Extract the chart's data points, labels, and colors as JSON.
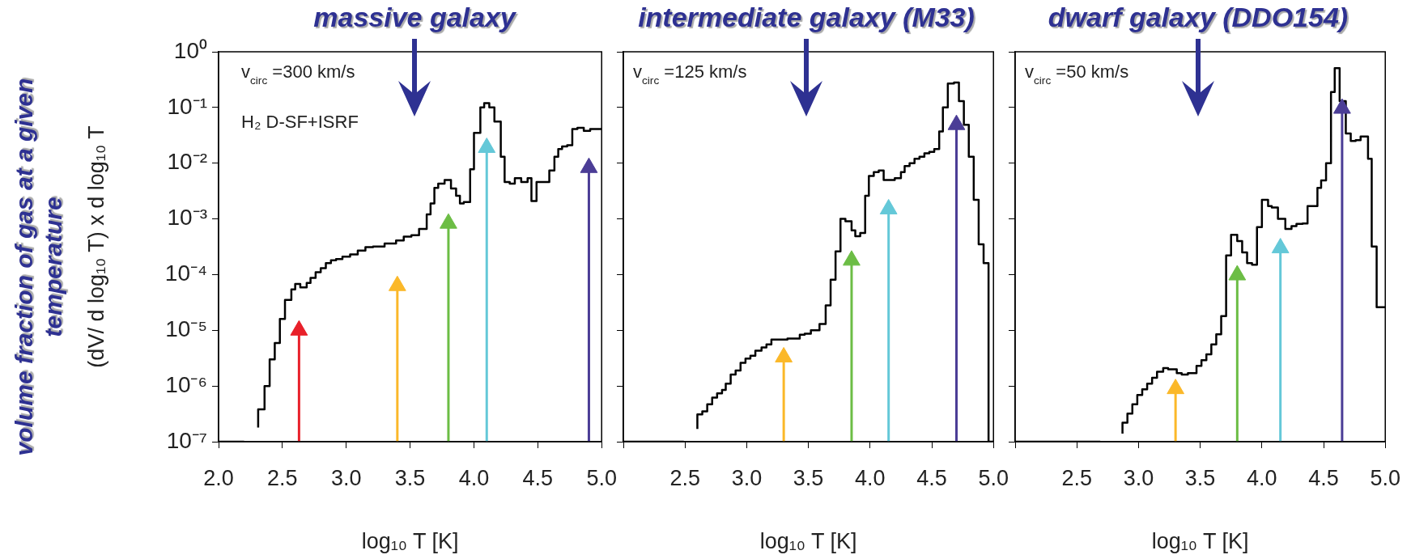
{
  "chart_data": [
    {
      "type": "step",
      "title": "massive galaxy",
      "xlabel": "log₁₀ T [K]",
      "ylabel": "(dV/ d log₁₀ T) x d log₁₀ T",
      "annotations": [
        "v$_{circ}$ =300 km/s",
        "H₂ D-SF+ISRF",
        "volume fraction of gas at a given temperature"
      ],
      "log": true,
      "xlim": [
        2,
        5
      ],
      "ylim": [
        1e-07,
        1
      ],
      "xticks": [
        {
          "value": 2,
          "label": "2.0"
        },
        {
          "value": 2.5,
          "label": "2.5"
        },
        {
          "value": 3,
          "label": "3.0"
        },
        {
          "value": 3.5,
          "label": "3.5"
        },
        {
          "value": 4,
          "label": "4.0"
        },
        {
          "value": 4.5,
          "label": "4.5"
        },
        {
          "value": 5,
          "label": "5.0"
        }
      ],
      "yticks": [
        {
          "value": 1e-07,
          "label": "10⁻⁷"
        },
        {
          "value": 1e-06,
          "label": "10⁻⁶"
        },
        {
          "value": 1e-05,
          "label": "10⁻⁵"
        },
        {
          "value": 0.0001,
          "label": "10⁻⁴"
        },
        {
          "value": 0.001,
          "label": "10⁻³"
        },
        {
          "value": 0.01,
          "label": "10⁻²"
        },
        {
          "value": 0.1,
          "label": "10⁻¹"
        },
        {
          "value": 1,
          "label": "10⁰"
        }
      ],
      "x": [
        2.0,
        2.2,
        2.25,
        2.31,
        2.36,
        2.4,
        2.44,
        2.48,
        2.52,
        2.57,
        2.6,
        2.64,
        2.69,
        2.72,
        2.76,
        2.8,
        2.84,
        2.88,
        2.92,
        2.97,
        3.03,
        3.09,
        3.15,
        3.21,
        3.3,
        3.39,
        3.45,
        3.51,
        3.57,
        3.63,
        3.66,
        3.69,
        3.72,
        3.77,
        3.82,
        3.86,
        3.89,
        3.92,
        3.97,
        4.0,
        4.05,
        4.08,
        4.12,
        4.16,
        4.21,
        4.24,
        4.28,
        4.32,
        4.37,
        4.42,
        4.45,
        4.49,
        4.53,
        4.59,
        4.63,
        4.66,
        4.69,
        4.73,
        4.77,
        4.81,
        4.86,
        4.91,
        4.95,
        5.0
      ],
      "series": [
        {
          "color": "#000000",
          "values": [
            1e-07,
            1e-07,
            null,
            1.8e-07,
            3.8e-07,
            1e-06,
            3e-06,
            5.9e-06,
            1.6e-05,
            3.5e-05,
            5.4e-05,
            6.8e-05,
            5.9e-05,
            7.1e-05,
            8.7e-05,
            0.00011,
            0.00013,
            0.00016,
            0.00018,
            0.00019,
            0.00021,
            0.00023,
            0.00027,
            0.00031,
            0.00032,
            0.00036,
            0.00041,
            0.00048,
            0.00051,
            0.00066,
            0.0012,
            0.0019,
            0.0036,
            0.0043,
            0.005,
            0.0035,
            0.0026,
            0.0019,
            0.002,
            0.0078,
            0.035,
            0.1,
            0.12,
            0.1,
            0.056,
            0.013,
            0.0046,
            0.0043,
            0.0054,
            0.0046,
            0.0054,
            0.0021,
            0.0046,
            0.0046,
            0.0074,
            0.013,
            0.018,
            0.02,
            0.021,
            0.041,
            0.043,
            0.038,
            0.041,
            0.041
          ]
        },
        {
          "type": "lollipop",
          "marker": "triangle",
          "color": "#e8202a",
          "x": [
            2.63
          ],
          "values": [
            1e-05
          ]
        },
        {
          "type": "lollipop",
          "marker": "triangle",
          "color": "#fbb829",
          "x": [
            3.4
          ],
          "values": [
            6.3e-05
          ]
        },
        {
          "type": "lollipop",
          "marker": "triangle",
          "color": "#6cbd45",
          "x": [
            3.8
          ],
          "values": [
            0.00083
          ]
        },
        {
          "type": "lollipop",
          "marker": "triangle",
          "color": "#64c8d8",
          "x": [
            4.1
          ],
          "values": [
            0.019
          ]
        },
        {
          "type": "lollipop",
          "marker": "triangle",
          "color": "#4b3d96",
          "x": [
            4.9
          ],
          "values": [
            0.0083
          ]
        }
      ]
    },
    {
      "type": "step",
      "title": "intermediate galaxy (M33)",
      "xlabel": "log₁₀ T [K]",
      "annotations": [
        "v$_{circ}$ =125 km/s"
      ],
      "log": true,
      "xlim": [
        2,
        5
      ],
      "ylim": [
        1e-07,
        1
      ],
      "tick_labels": "x",
      "xticks": [
        {
          "value": 2,
          "label": null
        },
        {
          "value": 2.5,
          "label": "2.5"
        },
        {
          "value": 3,
          "label": "3.0"
        },
        {
          "value": 3.5,
          "label": "3.5"
        },
        {
          "value": 4,
          "label": "4.0"
        },
        {
          "value": 4.5,
          "label": "4.5"
        },
        {
          "value": 5,
          "label": "5.0"
        }
      ],
      "yticks": [
        {
          "value": 1e-07,
          "label": null
        },
        {
          "value": 1e-06,
          "label": null
        },
        {
          "value": 1e-05,
          "label": null
        },
        {
          "value": 0.0001,
          "label": null
        },
        {
          "value": 0.001,
          "label": null
        },
        {
          "value": 0.01,
          "label": null
        },
        {
          "value": 0.1,
          "label": null
        },
        {
          "value": 1,
          "label": null
        }
      ],
      "x": [
        2.0,
        2.49,
        2.55,
        2.6,
        2.64,
        2.68,
        2.72,
        2.76,
        2.8,
        2.83,
        2.87,
        2.91,
        2.95,
        2.99,
        3.03,
        3.07,
        3.12,
        3.16,
        3.2,
        3.24,
        3.33,
        3.43,
        3.47,
        3.52,
        3.59,
        3.64,
        3.68,
        3.72,
        3.76,
        3.8,
        3.85,
        3.88,
        3.92,
        3.96,
        3.99,
        4.03,
        4.07,
        4.11,
        4.2,
        4.25,
        4.28,
        4.32,
        4.36,
        4.4,
        4.44,
        4.48,
        4.52,
        4.56,
        4.59,
        4.63,
        4.68,
        4.72,
        4.76,
        4.8,
        4.84,
        4.88,
        4.92,
        4.96,
        5.0
      ],
      "series": [
        {
          "color": "#000000",
          "values": [
            1e-07,
            1e-07,
            null,
            1.7e-07,
            3.1e-07,
            3.5e-07,
            4.7e-07,
            6.2e-07,
            7.4e-07,
            8.5e-07,
            1.1e-06,
            1.6e-06,
            1.9e-06,
            2.6e-06,
            3.1e-06,
            3.5e-06,
            4.3e-06,
            4.9e-06,
            5.6e-06,
            6.8e-06,
            6.8e-06,
            7.1e-06,
            8.3e-06,
            8.7e-06,
            1e-05,
            1.3e-05,
            2.8e-05,
            8.1e-05,
            0.00026,
            0.001,
            0.00091,
            0.00062,
            0.00049,
            0.00056,
            0.0026,
            0.0059,
            0.0069,
            0.0074,
            0.005,
            0.0054,
            0.0069,
            0.0089,
            0.01,
            0.012,
            0.013,
            0.015,
            0.016,
            0.018,
            0.037,
            0.1,
            0.27,
            0.28,
            0.13,
            0.049,
            0.013,
            0.0022,
            0.00035,
            0.00016,
            1e-07
          ]
        },
        {
          "type": "lollipop",
          "marker": "triangle",
          "color": "#fbb829",
          "x": [
            3.3
          ],
          "values": [
            3.3e-06
          ]
        },
        {
          "type": "lollipop",
          "marker": "triangle",
          "color": "#6cbd45",
          "x": [
            3.85
          ],
          "values": [
            0.00018
          ]
        },
        {
          "type": "lollipop",
          "marker": "triangle",
          "color": "#64c8d8",
          "x": [
            4.15
          ],
          "values": [
            0.0015
          ]
        },
        {
          "type": "lollipop",
          "marker": "triangle",
          "color": "#4b3d96",
          "x": [
            4.7
          ],
          "values": [
            0.049
          ]
        }
      ]
    },
    {
      "type": "step",
      "title": "dwarf galaxy (DDO154)",
      "xlabel": "log₁₀ T [K]",
      "annotations": [
        "v$_{circ}$ =50 km/s"
      ],
      "log": true,
      "xlim": [
        2,
        5
      ],
      "ylim": [
        1e-07,
        1
      ],
      "tick_labels": "x",
      "xticks": [
        {
          "value": 2,
          "label": null
        },
        {
          "value": 2.5,
          "label": "2.5"
        },
        {
          "value": 3,
          "label": "3.0"
        },
        {
          "value": 3.5,
          "label": "3.5"
        },
        {
          "value": 4,
          "label": "4.0"
        },
        {
          "value": 4.5,
          "label": "4.5"
        },
        {
          "value": 5,
          "label": "5.0"
        }
      ],
      "yticks": [
        {
          "value": 1e-07,
          "label": null
        },
        {
          "value": 1e-06,
          "label": null
        },
        {
          "value": 1e-05,
          "label": null
        },
        {
          "value": 0.0001,
          "label": null
        },
        {
          "value": 0.001,
          "label": null
        },
        {
          "value": 0.01,
          "label": null
        },
        {
          "value": 0.1,
          "label": null
        },
        {
          "value": 1,
          "label": null
        }
      ],
      "x": [
        2.0,
        2.69,
        2.75,
        2.87,
        2.91,
        2.95,
        2.99,
        3.03,
        3.07,
        3.11,
        3.15,
        3.2,
        3.24,
        3.31,
        3.35,
        3.4,
        3.47,
        3.51,
        3.55,
        3.59,
        3.63,
        3.67,
        3.71,
        3.75,
        3.8,
        3.84,
        3.88,
        3.92,
        3.96,
        4.0,
        4.05,
        4.08,
        4.13,
        4.19,
        4.24,
        4.28,
        4.33,
        4.37,
        4.45,
        4.48,
        4.52,
        4.56,
        4.59,
        4.63,
        4.68,
        4.72,
        4.76,
        4.8,
        4.86,
        4.89,
        4.93,
        4.96,
        5.0
      ],
      "series": [
        {
          "color": "#000000",
          "values": [
            1e-07,
            1e-07,
            null,
            1.4e-07,
            2.2e-07,
            3.2e-07,
            4.7e-07,
            6.9e-07,
            8.7e-07,
            1.1e-06,
            1.4e-06,
            1.8e-06,
            2.1e-06,
            2e-06,
            1.7e-06,
            1.6e-06,
            1.7e-06,
            2.3e-06,
            2.9e-06,
            3.7e-06,
            5.6e-06,
            8.5e-06,
            1.8e-05,
            0.00022,
            0.00052,
            0.0004,
            0.00025,
            0.00016,
            0.00015,
            0.00071,
            0.0022,
            0.0017,
            0.0016,
            0.001,
            0.00066,
            0.00074,
            0.00081,
            0.00083,
            0.0017,
            0.0036,
            0.0049,
            0.01,
            0.19,
            0.51,
            0.13,
            0.034,
            0.025,
            0.026,
            0.03,
            0.012,
            0.00032,
            2.6e-05,
            2.6e-05
          ]
        },
        {
          "type": "lollipop",
          "marker": "triangle",
          "color": "#fbb829",
          "x": [
            3.3
          ],
          "values": [
            8.9e-07
          ]
        },
        {
          "type": "lollipop",
          "marker": "triangle",
          "color": "#6cbd45",
          "x": [
            3.8
          ],
          "values": [
            9.8e-05
          ]
        },
        {
          "type": "lollipop",
          "marker": "triangle",
          "color": "#64c8d8",
          "x": [
            4.15
          ],
          "values": [
            0.0003
          ]
        },
        {
          "type": "lollipop",
          "marker": "triangle",
          "color": "#4b3d96",
          "x": [
            4.65
          ],
          "values": [
            0.096
          ]
        }
      ]
    }
  ]
}
